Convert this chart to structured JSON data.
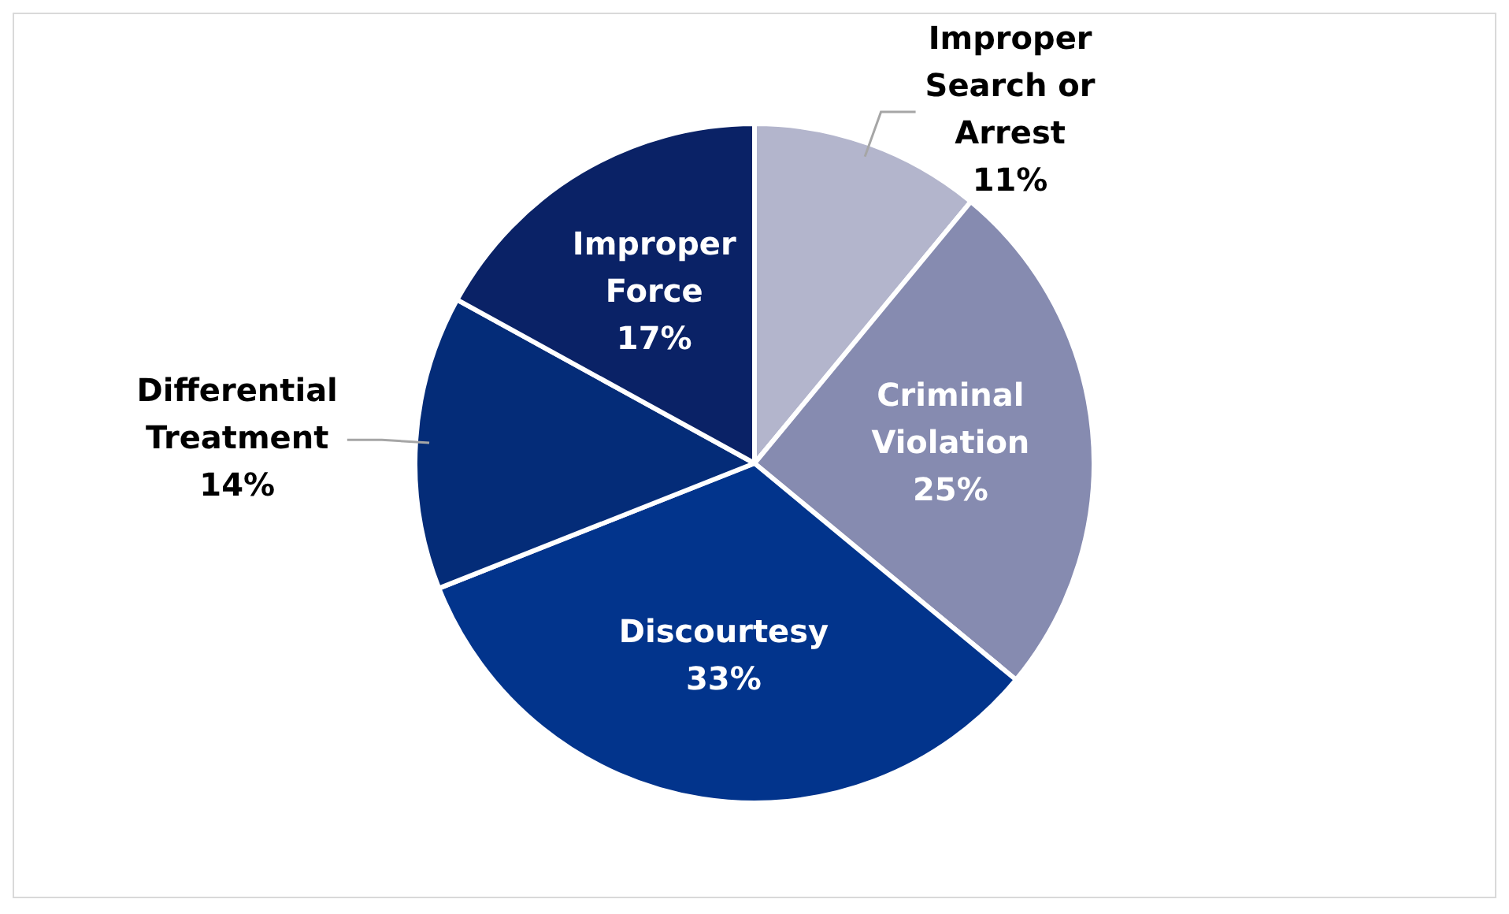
{
  "chart_data": {
    "type": "pie",
    "categories": [
      "Improper Search or Arrest",
      "Criminal Violation",
      "Discourtesy",
      "Differential Treatment",
      "Improper Force"
    ],
    "values": [
      11,
      25,
      33,
      14,
      17
    ],
    "colors": [
      "#b3b5cc",
      "#868bb0",
      "#02348c",
      "#042c78",
      "#0a2266"
    ],
    "value_labels": [
      "11%",
      "25%",
      "33%",
      "14%",
      "17%"
    ],
    "legend": false
  }
}
